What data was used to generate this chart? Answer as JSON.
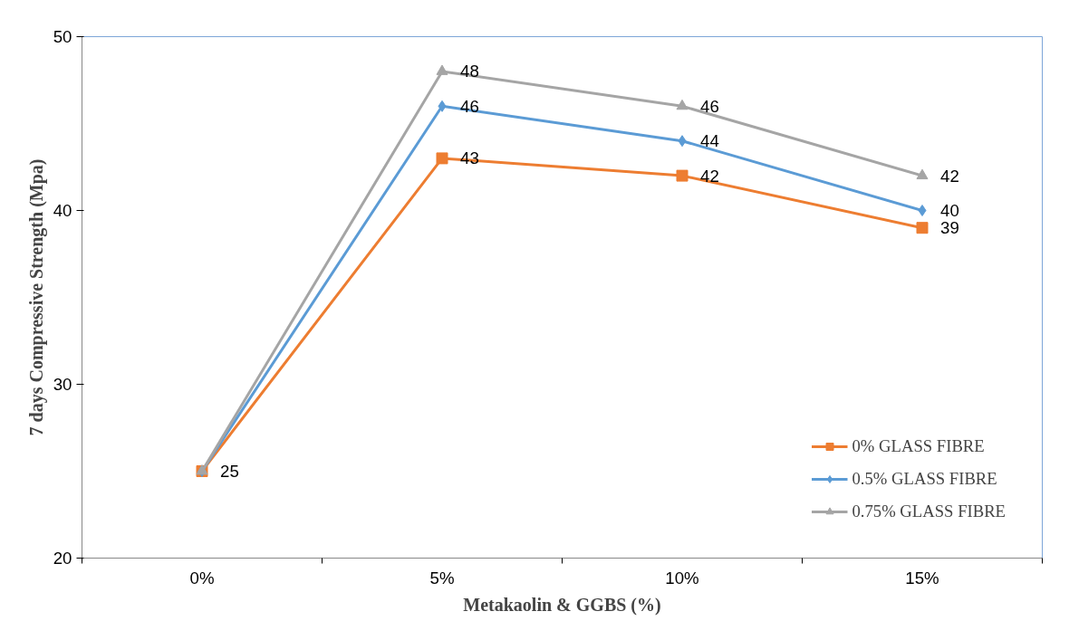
{
  "chart_data": {
    "type": "line",
    "xlabel": "Metakaolin & GGBS (%)",
    "ylabel": "7 days Compressive Strength (Mpa)",
    "categories": [
      "0%",
      "5%",
      "10%",
      "15%"
    ],
    "ylim": [
      20,
      50
    ],
    "yticks": [
      20,
      30,
      40,
      50
    ],
    "grid": false,
    "legend": "bottom right",
    "line_style": "solid",
    "series": [
      {
        "name": "0% GLASS FIBRE",
        "color": "#ed7d31",
        "marker": "square",
        "values": [
          25,
          43,
          42,
          39
        ],
        "value_labels": [
          "25",
          "43",
          "42",
          "39"
        ]
      },
      {
        "name": "0.5% GLASS FIBRE",
        "color": "#5b9bd5",
        "marker": "diamond",
        "values": [
          25,
          46,
          44,
          40
        ],
        "value_labels": [
          null,
          "46",
          "44",
          "40"
        ]
      },
      {
        "name": "0.75% GLASS FIBRE",
        "color": "#a5a5a5",
        "marker": "triangle",
        "values": [
          25,
          48,
          46,
          42
        ],
        "value_labels": [
          null,
          "48",
          "46",
          "42"
        ]
      }
    ]
  }
}
